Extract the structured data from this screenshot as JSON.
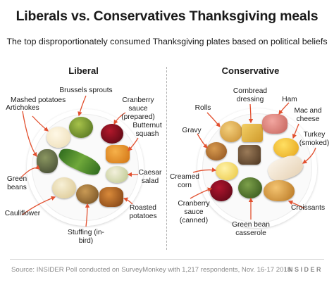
{
  "title": "Liberals vs. Conservatives Thanksgiving meals",
  "subtitle": "The top disproportionately consumed Thanksgiving plates based on political beliefs",
  "panels": {
    "liberal": {
      "heading": "Liberal",
      "items": {
        "mashed_potatoes": "Mashed potatoes",
        "brussels_sprouts": "Brussels sprouts",
        "cranberry_prepared": "Cranberry sauce (prepared)",
        "artichokes": "Artichokes",
        "butternut_squash": "Butternut squash",
        "green_beans": "Green beans",
        "caesar_salad": "Caesar salad",
        "cauliflower": "Cauliflower",
        "roasted_potatoes": "Roasted potatoes",
        "stuffing": "Stuffing (in-bird)"
      }
    },
    "conservative": {
      "heading": "Conservative",
      "items": {
        "cornbread_dressing": "Cornbread dressing",
        "ham": "Ham",
        "rolls": "Rolls",
        "mac_and_cheese": "Mac and cheese",
        "gravy": "Gravy",
        "turkey_smoked": "Turkey (smoked)",
        "creamed_corn": "Creamed corn",
        "cranberry_canned": "Cranberry sauce (canned)",
        "croissants": "Croissants",
        "green_bean_casserole": "Green bean casserole"
      }
    }
  },
  "footer": {
    "source": "Source:  INSIDER Poll conducted on SurveyMonkey with 1,217 respondents,  Nov. 16-17 2018",
    "brand": "INSIDER"
  },
  "colors": {
    "arrow": "#e2502f",
    "divider": "#b0b0b0",
    "muted": "#8a8a8a"
  }
}
